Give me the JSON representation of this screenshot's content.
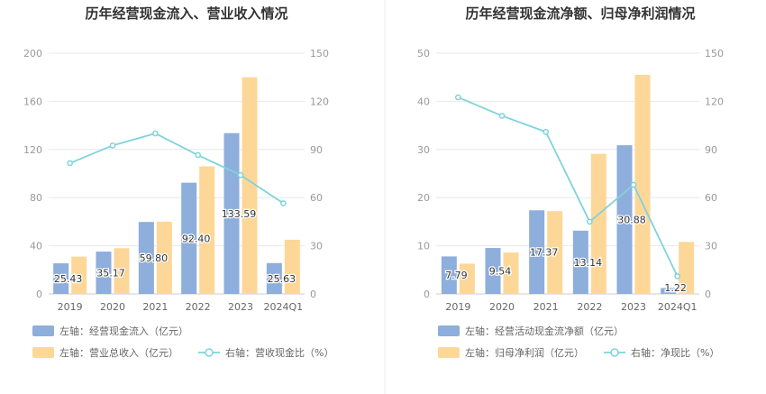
{
  "colors": {
    "bar_primary": "#8eaedc",
    "bar_secondary": "#fdd798",
    "line": "#7fd3dc",
    "grid": "#e8e8ee",
    "divider": "#eeeeee"
  },
  "chart_data": [
    {
      "type": "bar",
      "title": "历年经营现金流入、营业收入情况",
      "categories": [
        "2019",
        "2020",
        "2021",
        "2022",
        "2023",
        "2024Q1"
      ],
      "left_axis": {
        "min": 0,
        "max": 200,
        "ticks": [
          "0",
          "40",
          "80",
          "120",
          "160",
          "200"
        ]
      },
      "right_axis": {
        "min": 0,
        "max": 150,
        "ticks": [
          "0",
          "30",
          "60",
          "90",
          "120",
          "150"
        ]
      },
      "series": [
        {
          "name": "左轴：经营现金流入（亿元）",
          "kind": "bar",
          "axis": "left",
          "values": [
            25.43,
            35.17,
            59.8,
            92.4,
            133.59,
            25.63
          ],
          "labels": [
            "25.43",
            "35.17",
            "59.80",
            "92.40",
            "133.59",
            "25.63"
          ]
        },
        {
          "name": "左轴：营业总收入（亿元）",
          "kind": "bar",
          "axis": "left",
          "values": [
            31,
            38,
            60,
            106,
            180,
            45
          ]
        },
        {
          "name": "右轴：营收现金比（%）",
          "kind": "line",
          "axis": "right",
          "values": [
            81.5,
            92.5,
            100,
            86.5,
            74,
            56.5
          ]
        }
      ]
    },
    {
      "type": "bar",
      "title": "历年经营现金流净额、归母净利润情况",
      "categories": [
        "2019",
        "2020",
        "2021",
        "2022",
        "2023",
        "2024Q1"
      ],
      "left_axis": {
        "min": 0,
        "max": 50,
        "ticks": [
          "0",
          "10",
          "20",
          "30",
          "40",
          "50"
        ]
      },
      "right_axis": {
        "min": 0,
        "max": 150,
        "ticks": [
          "0",
          "30",
          "60",
          "90",
          "120",
          "150"
        ]
      },
      "series": [
        {
          "name": "左轴：经营活动现金流净额（亿元）",
          "kind": "bar",
          "axis": "left",
          "values": [
            7.79,
            9.54,
            17.37,
            13.14,
            30.88,
            1.22
          ],
          "labels": [
            "7.79",
            "9.54",
            "17.37",
            "13.14",
            "30.88",
            "1.22"
          ]
        },
        {
          "name": "左轴：归母净利润（亿元）",
          "kind": "bar",
          "axis": "left",
          "values": [
            6.3,
            8.6,
            17.2,
            29.1,
            45.5,
            10.8
          ]
        },
        {
          "name": "右轴：净现比（%）",
          "kind": "line",
          "axis": "right",
          "values": [
            122.5,
            111,
            101,
            45,
            68,
            11
          ]
        }
      ]
    }
  ]
}
